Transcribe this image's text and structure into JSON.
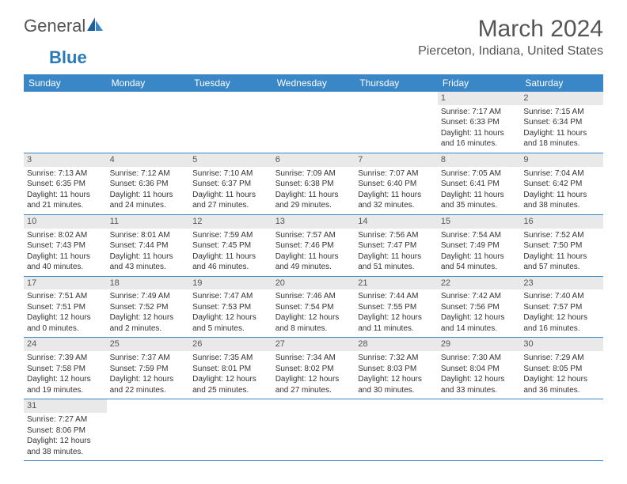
{
  "logo": {
    "general": "General",
    "blue": "Blue"
  },
  "title": "March 2024",
  "location": "Pierceton, Indiana, United States",
  "colors": {
    "header_blue": "#3a87c8",
    "daynum_bg": "#e9e9e9",
    "text": "#333333",
    "logo_blue": "#2a7ab8"
  },
  "weekdays": [
    "Sunday",
    "Monday",
    "Tuesday",
    "Wednesday",
    "Thursday",
    "Friday",
    "Saturday"
  ],
  "weeks": [
    [
      null,
      null,
      null,
      null,
      null,
      {
        "n": "1",
        "sr": "7:17 AM",
        "ss": "6:33 PM",
        "dl": "11 hours and 16 minutes."
      },
      {
        "n": "2",
        "sr": "7:15 AM",
        "ss": "6:34 PM",
        "dl": "11 hours and 18 minutes."
      }
    ],
    [
      {
        "n": "3",
        "sr": "7:13 AM",
        "ss": "6:35 PM",
        "dl": "11 hours and 21 minutes."
      },
      {
        "n": "4",
        "sr": "7:12 AM",
        "ss": "6:36 PM",
        "dl": "11 hours and 24 minutes."
      },
      {
        "n": "5",
        "sr": "7:10 AM",
        "ss": "6:37 PM",
        "dl": "11 hours and 27 minutes."
      },
      {
        "n": "6",
        "sr": "7:09 AM",
        "ss": "6:38 PM",
        "dl": "11 hours and 29 minutes."
      },
      {
        "n": "7",
        "sr": "7:07 AM",
        "ss": "6:40 PM",
        "dl": "11 hours and 32 minutes."
      },
      {
        "n": "8",
        "sr": "7:05 AM",
        "ss": "6:41 PM",
        "dl": "11 hours and 35 minutes."
      },
      {
        "n": "9",
        "sr": "7:04 AM",
        "ss": "6:42 PM",
        "dl": "11 hours and 38 minutes."
      }
    ],
    [
      {
        "n": "10",
        "sr": "8:02 AM",
        "ss": "7:43 PM",
        "dl": "11 hours and 40 minutes."
      },
      {
        "n": "11",
        "sr": "8:01 AM",
        "ss": "7:44 PM",
        "dl": "11 hours and 43 minutes."
      },
      {
        "n": "12",
        "sr": "7:59 AM",
        "ss": "7:45 PM",
        "dl": "11 hours and 46 minutes."
      },
      {
        "n": "13",
        "sr": "7:57 AM",
        "ss": "7:46 PM",
        "dl": "11 hours and 49 minutes."
      },
      {
        "n": "14",
        "sr": "7:56 AM",
        "ss": "7:47 PM",
        "dl": "11 hours and 51 minutes."
      },
      {
        "n": "15",
        "sr": "7:54 AM",
        "ss": "7:49 PM",
        "dl": "11 hours and 54 minutes."
      },
      {
        "n": "16",
        "sr": "7:52 AM",
        "ss": "7:50 PM",
        "dl": "11 hours and 57 minutes."
      }
    ],
    [
      {
        "n": "17",
        "sr": "7:51 AM",
        "ss": "7:51 PM",
        "dl": "12 hours and 0 minutes."
      },
      {
        "n": "18",
        "sr": "7:49 AM",
        "ss": "7:52 PM",
        "dl": "12 hours and 2 minutes."
      },
      {
        "n": "19",
        "sr": "7:47 AM",
        "ss": "7:53 PM",
        "dl": "12 hours and 5 minutes."
      },
      {
        "n": "20",
        "sr": "7:46 AM",
        "ss": "7:54 PM",
        "dl": "12 hours and 8 minutes."
      },
      {
        "n": "21",
        "sr": "7:44 AM",
        "ss": "7:55 PM",
        "dl": "12 hours and 11 minutes."
      },
      {
        "n": "22",
        "sr": "7:42 AM",
        "ss": "7:56 PM",
        "dl": "12 hours and 14 minutes."
      },
      {
        "n": "23",
        "sr": "7:40 AM",
        "ss": "7:57 PM",
        "dl": "12 hours and 16 minutes."
      }
    ],
    [
      {
        "n": "24",
        "sr": "7:39 AM",
        "ss": "7:58 PM",
        "dl": "12 hours and 19 minutes."
      },
      {
        "n": "25",
        "sr": "7:37 AM",
        "ss": "7:59 PM",
        "dl": "12 hours and 22 minutes."
      },
      {
        "n": "26",
        "sr": "7:35 AM",
        "ss": "8:01 PM",
        "dl": "12 hours and 25 minutes."
      },
      {
        "n": "27",
        "sr": "7:34 AM",
        "ss": "8:02 PM",
        "dl": "12 hours and 27 minutes."
      },
      {
        "n": "28",
        "sr": "7:32 AM",
        "ss": "8:03 PM",
        "dl": "12 hours and 30 minutes."
      },
      {
        "n": "29",
        "sr": "7:30 AM",
        "ss": "8:04 PM",
        "dl": "12 hours and 33 minutes."
      },
      {
        "n": "30",
        "sr": "7:29 AM",
        "ss": "8:05 PM",
        "dl": "12 hours and 36 minutes."
      }
    ],
    [
      {
        "n": "31",
        "sr": "7:27 AM",
        "ss": "8:06 PM",
        "dl": "12 hours and 38 minutes."
      },
      null,
      null,
      null,
      null,
      null,
      null
    ]
  ],
  "labels": {
    "sunrise": "Sunrise: ",
    "sunset": "Sunset: ",
    "daylight": "Daylight: "
  }
}
